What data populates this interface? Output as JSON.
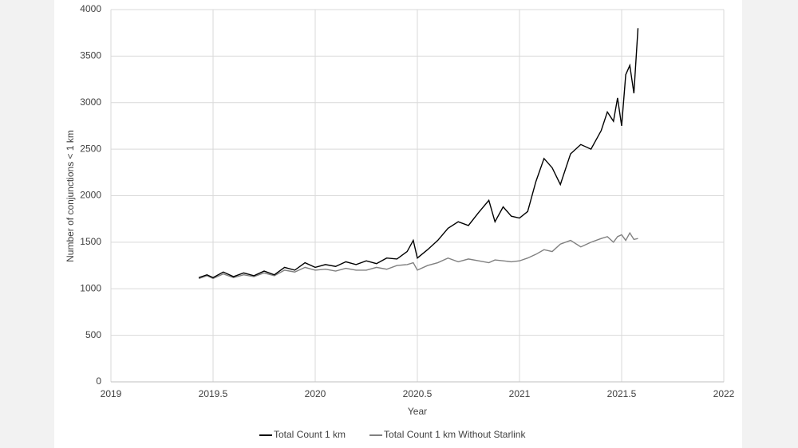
{
  "chart_data": {
    "type": "line",
    "x_label": "Year",
    "y_label": "Number of conjunctions < 1 km",
    "x": [
      2019.43,
      2019.47,
      2019.5,
      2019.55,
      2019.6,
      2019.65,
      2019.7,
      2019.75,
      2019.8,
      2019.85,
      2019.9,
      2019.95,
      2020.0,
      2020.05,
      2020.1,
      2020.15,
      2020.2,
      2020.25,
      2020.3,
      2020.35,
      2020.4,
      2020.45,
      2020.48,
      2020.5,
      2020.55,
      2020.6,
      2020.65,
      2020.7,
      2020.75,
      2020.8,
      2020.85,
      2020.88,
      2020.92,
      2020.96,
      2021.0,
      2021.04,
      2021.08,
      2021.12,
      2021.16,
      2021.2,
      2021.25,
      2021.3,
      2021.35,
      2021.4,
      2021.43,
      2021.46,
      2021.48,
      2021.5,
      2021.52,
      2021.54,
      2021.56,
      2021.58
    ],
    "series": [
      {
        "name": "Total Count 1 km",
        "color": "#000000",
        "values": [
          1120,
          1150,
          1120,
          1180,
          1130,
          1170,
          1140,
          1190,
          1150,
          1230,
          1200,
          1280,
          1230,
          1260,
          1240,
          1290,
          1260,
          1300,
          1270,
          1330,
          1320,
          1400,
          1520,
          1330,
          1420,
          1520,
          1650,
          1720,
          1680,
          1820,
          1950,
          1720,
          1880,
          1780,
          1760,
          1830,
          2150,
          2400,
          2300,
          2120,
          2450,
          2550,
          2500,
          2700,
          2900,
          2800,
          3050,
          2750,
          3300,
          3400,
          3100,
          3800
        ]
      },
      {
        "name": "Total Count 1 km Without Starlink",
        "color": "#808080",
        "values": [
          1110,
          1140,
          1110,
          1160,
          1120,
          1150,
          1130,
          1170,
          1140,
          1200,
          1180,
          1230,
          1200,
          1210,
          1190,
          1220,
          1200,
          1200,
          1230,
          1210,
          1250,
          1260,
          1280,
          1200,
          1250,
          1280,
          1330,
          1290,
          1320,
          1300,
          1280,
          1310,
          1300,
          1290,
          1300,
          1330,
          1370,
          1420,
          1400,
          1480,
          1520,
          1450,
          1500,
          1540,
          1560,
          1500,
          1560,
          1580,
          1520,
          1600,
          1530,
          1540
        ]
      }
    ],
    "xlim": [
      2019,
      2022
    ],
    "xticks": [
      2019,
      2019.5,
      2020,
      2020.5,
      2021,
      2021.5,
      2022
    ],
    "ylim": [
      0,
      4000
    ],
    "yticks": [
      0,
      500,
      1000,
      1500,
      2000,
      2500,
      3000,
      3500,
      4000
    ],
    "grid": true,
    "legend": "bottom"
  }
}
